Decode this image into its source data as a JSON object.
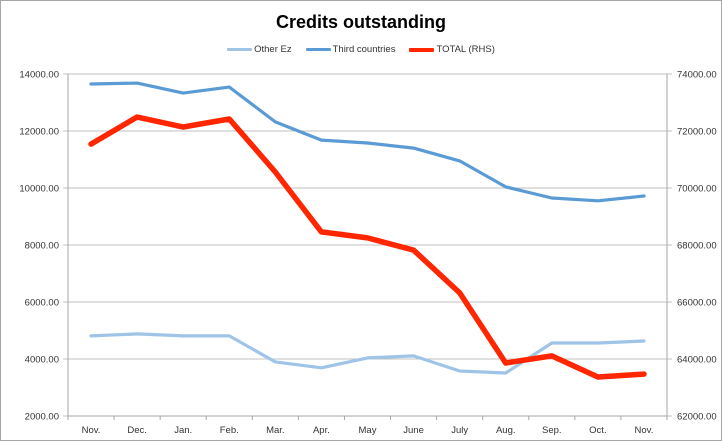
{
  "chart_data": {
    "type": "line",
    "title": "Credits outstanding",
    "categories": [
      "Nov.",
      "Dec.",
      "Jan.",
      "Feb.",
      "Mar.",
      "Apr.",
      "May",
      "June",
      "July",
      "Aug.",
      "Sep.",
      "Oct.",
      "Nov."
    ],
    "series": [
      {
        "name": "Other Ez",
        "axis": "left",
        "color": "#9fc4e8",
        "values": [
          4810,
          4880,
          4810,
          4810,
          3900,
          3690,
          4040,
          4110,
          3580,
          3510,
          4560,
          4560,
          4630
        ]
      },
      {
        "name": "Third countries",
        "axis": "left",
        "color": "#5b9bd5",
        "values": [
          13650,
          13680,
          13330,
          13540,
          12320,
          11680,
          11580,
          11400,
          10950,
          10040,
          9650,
          9550,
          9720
        ]
      },
      {
        "name": "TOTAL (RHS)",
        "axis": "right",
        "color": "#ff2600",
        "values": [
          71540,
          72490,
          72140,
          72420,
          70560,
          68460,
          68250,
          67820,
          66320,
          63860,
          64110,
          63370,
          63470
        ]
      }
    ],
    "xlabel": "",
    "ylabel": "",
    "ylim": [
      2000,
      14000
    ],
    "y2lim": [
      62000,
      74000
    ],
    "yticks": [
      "14000.00",
      "12000.00",
      "10000.00",
      "8000.00",
      "6000.00",
      "4000.00",
      "2000.00"
    ],
    "y2ticks": [
      "74000.00",
      "72000.00",
      "70000.00",
      "68000.00",
      "66000.00",
      "64000.00",
      "62000.00"
    ],
    "grid": true,
    "legend_position": "top"
  },
  "legend": [
    {
      "label": "Other Ez",
      "color": "#9fc4e8"
    },
    {
      "label": "Third countries",
      "color": "#5b9bd5"
    },
    {
      "label": "TOTAL (RHS)",
      "color": "#ff2600"
    }
  ]
}
